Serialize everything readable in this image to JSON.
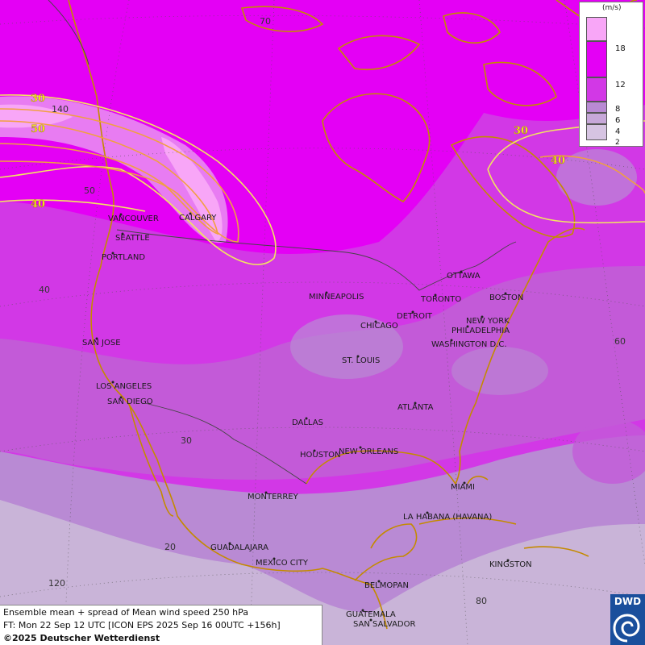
{
  "map": {
    "region": "North America",
    "colors": {
      "ocean_low": "#c9b4d8",
      "band_2_4": "#d6c4e2",
      "band_4_6": "#c7a8d9",
      "band_6_8": "#b98ad4",
      "band_8_12": "#c35ad8",
      "band_12_18": "#d238e6",
      "band_18_plus": "#e400f5",
      "band_top": "#f8a6f7",
      "coast_line": "#c48a00",
      "contour_line": "#f2e560",
      "contour_line_inner": "#f0a040"
    },
    "contour_labels": [
      {
        "name": "contour-label-30-west",
        "text": "30"
      },
      {
        "name": "contour-label-50-west",
        "text": "50"
      },
      {
        "name": "contour-label-40-west",
        "text": "40"
      },
      {
        "name": "contour-label-30-east",
        "text": "30"
      },
      {
        "name": "contour-label-40-east",
        "text": "40"
      }
    ],
    "grid_labels": [
      "70",
      "140",
      "50",
      "40",
      "60",
      "30",
      "20",
      "120",
      "80"
    ],
    "cities": [
      "VANCOUVER",
      "CALGARY",
      "SEATTLE",
      "PORTLAND",
      "MINNEAPOLIS",
      "OTTAWA",
      "TORONTO",
      "DETROIT",
      "BOSTON",
      "CHICAGO",
      "NEW YORK",
      "PHILADELPHIA",
      "WASHINGTON D.C.",
      "SAN JOSE",
      "ST. LOUIS",
      "LOS ANGELES",
      "SAN DIEGO",
      "ATLANTA",
      "DALLAS",
      "HOUSTON",
      "NEW ORLEANS",
      "MIAMI",
      "MONTERREY",
      "LA HABANA (HAVANA)",
      "GUADALAJARA",
      "MEXICO CITY",
      "KINGSTON",
      "BELMOPAN",
      "GUATEMALA",
      "SAN SALVADOR"
    ]
  },
  "legend": {
    "unit": "(m/s)",
    "ticks": [
      "18",
      "12",
      "8",
      "6",
      "4",
      "2"
    ]
  },
  "caption": {
    "line1": "Ensemble mean + spread of Mean wind speed 250 hPa",
    "line2": "FT: Mon 22 Sep 12 UTC [ICON EPS 2025 Sep 16 00UTC +156h]",
    "line3": "©2025 Deutscher Wetterdienst"
  },
  "logo": {
    "text": "DWD"
  }
}
